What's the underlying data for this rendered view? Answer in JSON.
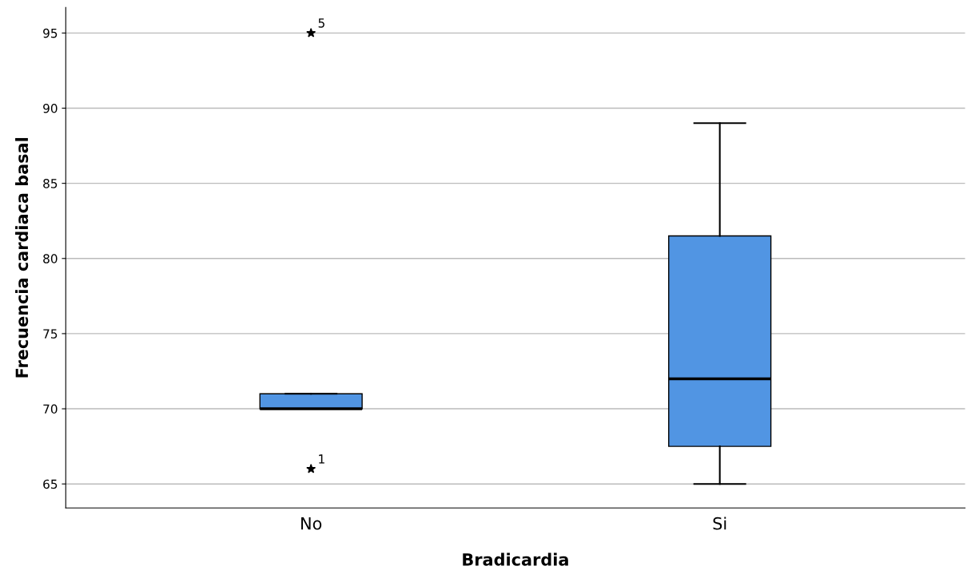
{
  "chart_data": {
    "type": "box",
    "xlabel": "Bradicardia",
    "ylabel": "Frecuencia cardiaca basal",
    "categories": [
      "No",
      "Si"
    ],
    "boxes": [
      {
        "low": 70,
        "q1": 70,
        "median": 70,
        "q3": 71,
        "high": 71,
        "outliers": [
          66,
          95
        ]
      },
      {
        "low": 65,
        "q1": 67.5,
        "median": 72,
        "q3": 81.5,
        "high": 89
      }
    ],
    "color": "#5195e3",
    "marker": "star",
    "ylim": [
      63.4,
      96.7
    ],
    "yticks": [
      65,
      70,
      75,
      80,
      85,
      90,
      95
    ],
    "grid": "y",
    "annotations": [
      "1",
      "5"
    ]
  }
}
